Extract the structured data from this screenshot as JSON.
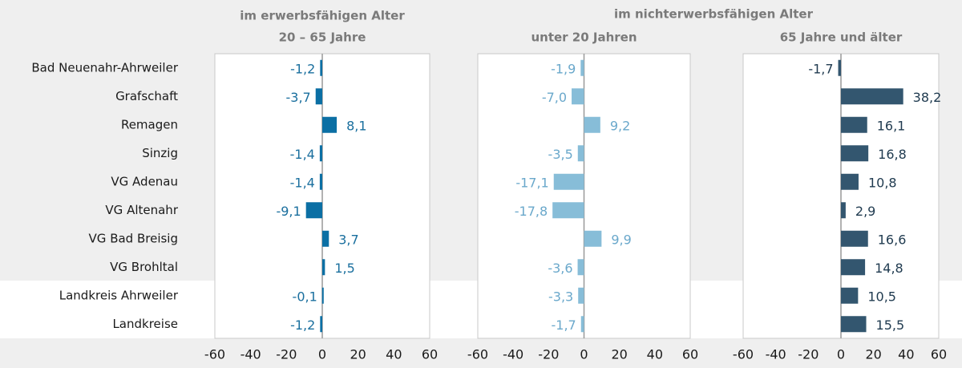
{
  "chart_data": {
    "type": "bar",
    "orientation": "horizontal",
    "group_title": "im nichterwerbsfähigen Alter",
    "categories": [
      "Bad Neuenahr-Ahrweiler",
      "Grafschaft",
      "Remagen",
      "Sinzig",
      "VG Adenau",
      "VG Altenahr",
      "VG Bad Breisig",
      "VG Brohltal",
      "Landkreis Ahrweiler",
      "Landkreise"
    ],
    "xlim": [
      -60,
      60
    ],
    "xticks": [
      -60,
      -40,
      -20,
      0,
      20,
      40,
      60
    ],
    "series": [
      {
        "name": [
          "im erwerbsfähigen Alter",
          "20 – 65 Jahre"
        ],
        "color": "#0b6fa4",
        "label_color": "#1a6f9e",
        "values": [
          -1.2,
          -3.7,
          8.1,
          -1.4,
          -1.4,
          -9.1,
          3.7,
          1.5,
          -0.1,
          -1.2
        ],
        "value_labels": [
          "-1,2",
          "-3,7",
          "8,1",
          "-1,4",
          "-1,4",
          "-9,1",
          "3,7",
          "1,5",
          "-0,1",
          "-1,2"
        ]
      },
      {
        "name": [
          "unter 20 Jahren"
        ],
        "color": "#87bdd8",
        "label_color": "#6aa8cb",
        "values": [
          -1.9,
          -7.0,
          9.2,
          -3.5,
          -17.1,
          -17.8,
          9.9,
          -3.6,
          -3.3,
          -1.7
        ],
        "value_labels": [
          "-1,9",
          "-7,0",
          "9,2",
          "-3,5",
          "-17,1",
          "-17,8",
          "9,9",
          "-3,6",
          "-3,3",
          "-1,7"
        ]
      },
      {
        "name": [
          "65 Jahre und älter"
        ],
        "color": "#33566f",
        "label_color": "#1f3a4f",
        "values": [
          -1.7,
          38.2,
          16.1,
          16.8,
          10.8,
          2.9,
          16.6,
          14.8,
          10.5,
          15.5
        ],
        "value_labels": [
          "-1,7",
          "38,2",
          "16,1",
          "16,8",
          "10,8",
          "2,9",
          "16,6",
          "14,8",
          "10,5",
          "15,5"
        ]
      }
    ]
  }
}
